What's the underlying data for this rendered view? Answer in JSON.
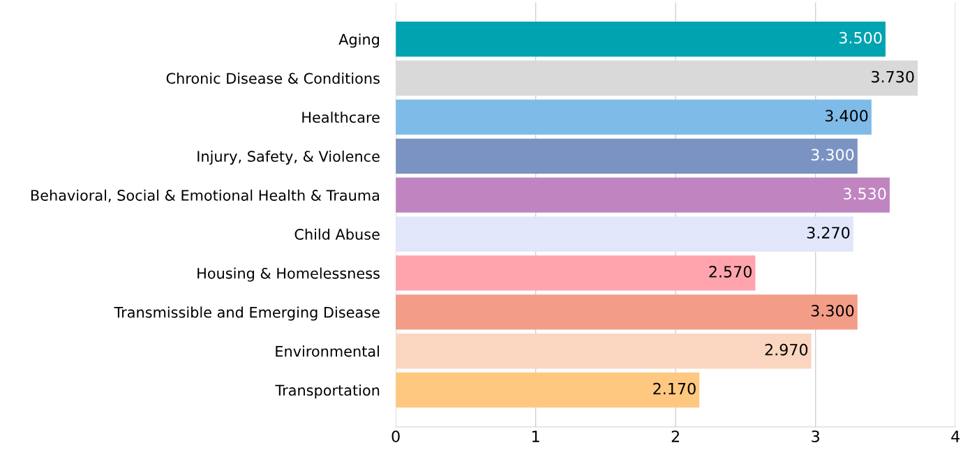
{
  "chart_data": {
    "type": "bar",
    "orientation": "horizontal",
    "categories": [
      "Aging",
      "Chronic Disease & Conditions",
      "Healthcare",
      "Injury, Safety, & Violence",
      "Behavioral, Social & Emotional Health & Trauma",
      "Child Abuse",
      "Housing & Homelessness",
      "Transmissible and Emerging Disease",
      "Environmental",
      "Transportation"
    ],
    "values": [
      3.5,
      3.73,
      3.4,
      3.3,
      3.53,
      3.27,
      2.57,
      3.3,
      2.97,
      2.17
    ],
    "value_labels": [
      "3.500",
      "3.730",
      "3.400",
      "3.300",
      "3.530",
      "3.270",
      "2.570",
      "3.300",
      "2.970",
      "2.170"
    ],
    "colors": [
      "#00a3b0",
      "#d9d9d9",
      "#7fbbe8",
      "#7b93c2",
      "#c085c1",
      "#e1e6fb",
      "#ffa4ad",
      "#f39d89",
      "#fad6c1",
      "#ffc880"
    ],
    "xlim": [
      0,
      4
    ],
    "xticks": [
      0,
      1,
      2,
      3,
      4
    ],
    "grid": "x",
    "legend": false
  }
}
